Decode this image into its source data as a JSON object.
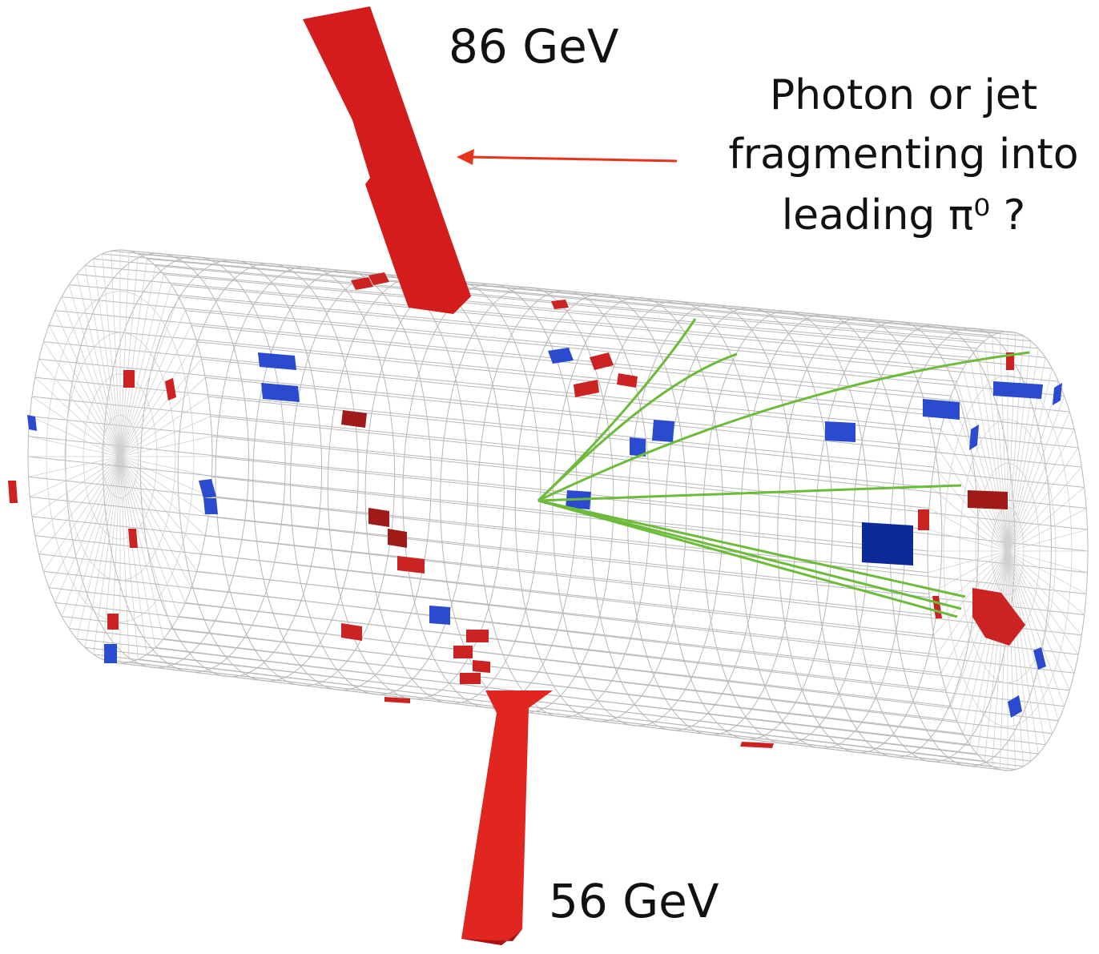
{
  "labels": {
    "upper_energy": "86 GeV",
    "lower_energy": "56 GeV"
  },
  "annotation": {
    "lines": [
      "Photon or jet",
      "fragmenting into",
      "leading π⁰ ?"
    ]
  }
}
